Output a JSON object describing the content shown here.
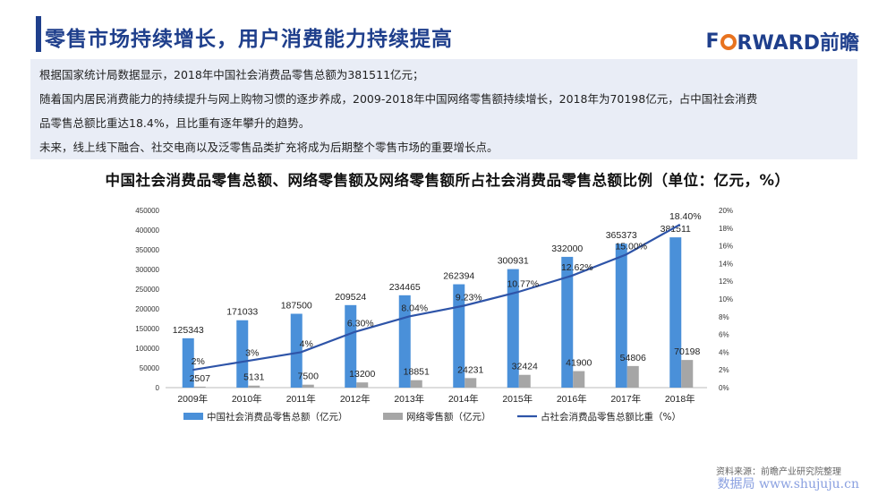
{
  "header": {
    "title": "零售市场持续增长，用户消费能力持续提高",
    "brand_prefix": "F",
    "brand_rest": "RWARD前瞻"
  },
  "intro": {
    "line1": "根据国家统计局数据显示，2018年中国社会消费品零售总额为381511亿元；",
    "line2": "随着国内居民消费能力的持续提升与网上购物习惯的逐步养成，2009-2018年中国网络零售额持续增长，2018年为70198亿元，占中国社会消费",
    "line3": "品零售总额比重达18.4%，且比重有逐年攀升的趋势。",
    "line4": "未来，线上线下融合、社交电商以及泛零售品类扩充将成为后期整个零售市场的重要增长点。"
  },
  "chart_data": {
    "type": "bar",
    "title": "中国社会消费品零售总额、网络零售额及网络零售额所占社会消费品零售总额比例（单位：亿元，%）",
    "categories": [
      "2009年",
      "2010年",
      "2011年",
      "2012年",
      "2013年",
      "2014年",
      "2015年",
      "2016年",
      "2017年",
      "2018年"
    ],
    "series": [
      {
        "name": "中国社会消费品零售总额（亿元）",
        "kind": "bar",
        "axis": "left",
        "color": "#4a90d9",
        "values": [
          125343,
          171033,
          187500,
          209524,
          234465,
          262394,
          300931,
          332000,
          365373,
          381511
        ]
      },
      {
        "name": "网络零售额（亿元）",
        "kind": "bar",
        "axis": "left",
        "color": "#a6a6a6",
        "values": [
          2507,
          5131,
          7500,
          13200,
          18851,
          24231,
          32424,
          41900,
          54806,
          70198
        ]
      },
      {
        "name": "占社会消费品零售总额比重（%）",
        "kind": "line",
        "axis": "right",
        "color": "#2e54a8",
        "values": [
          2,
          3,
          4,
          6.3,
          8.04,
          9.23,
          10.77,
          12.62,
          15.0,
          18.4
        ],
        "labels": [
          "2%",
          "3%",
          "4%",
          "6.30%",
          "8.04%",
          "9.23%",
          "10.77%",
          "12.62%",
          "15.00%",
          "18.40%"
        ]
      }
    ],
    "ylim_left": [
      0,
      450000
    ],
    "yticks_left": [
      "0",
      "50000",
      "100000",
      "150000",
      "200000",
      "250000",
      "300000",
      "350000",
      "400000",
      "450000"
    ],
    "ylim_right": [
      0,
      20
    ],
    "yticks_right": [
      "0%",
      "2%",
      "4%",
      "6%",
      "8%",
      "10%",
      "12%",
      "14%",
      "16%",
      "18%",
      "20%"
    ],
    "grid": false,
    "legend_position": "bottom"
  },
  "footer": {
    "source": "资料来源：前瞻产业研究院整理",
    "watermark": "数据局 www.shujuju.cn"
  }
}
